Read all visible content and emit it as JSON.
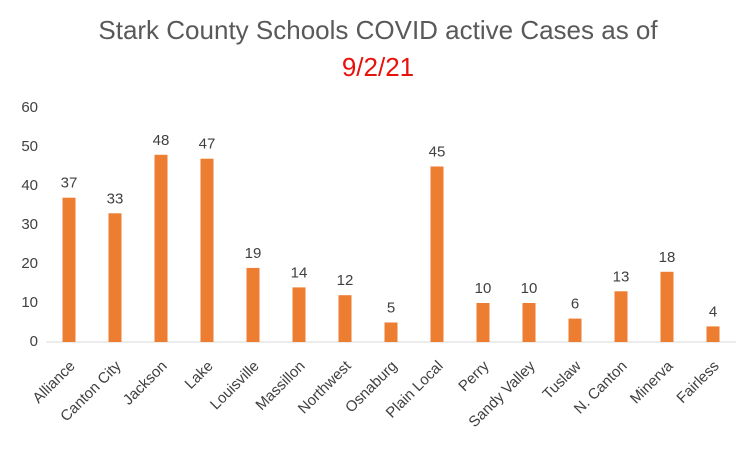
{
  "chart_data": {
    "type": "bar",
    "title": "Stark County Schools COVID active Cases as of",
    "subtitle": "9/2/21",
    "categories": [
      "Alliance",
      "Canton City",
      "Jackson",
      "Lake",
      "Louisville",
      "Massillon",
      "Northwest",
      "Osnaburg",
      "Plain Local",
      "Perry",
      "Sandy Valley",
      "Tuslaw",
      "N. Canton",
      "Minerva",
      "Fairless"
    ],
    "values": [
      37,
      33,
      48,
      47,
      19,
      14,
      12,
      5,
      45,
      10,
      10,
      6,
      13,
      18,
      4
    ],
    "color": "#ed7d31",
    "subtitle_color": "#e8120c",
    "ylim": [
      0,
      60
    ],
    "yticks": [
      0,
      10,
      20,
      30,
      40,
      50,
      60
    ],
    "grid": false
  }
}
